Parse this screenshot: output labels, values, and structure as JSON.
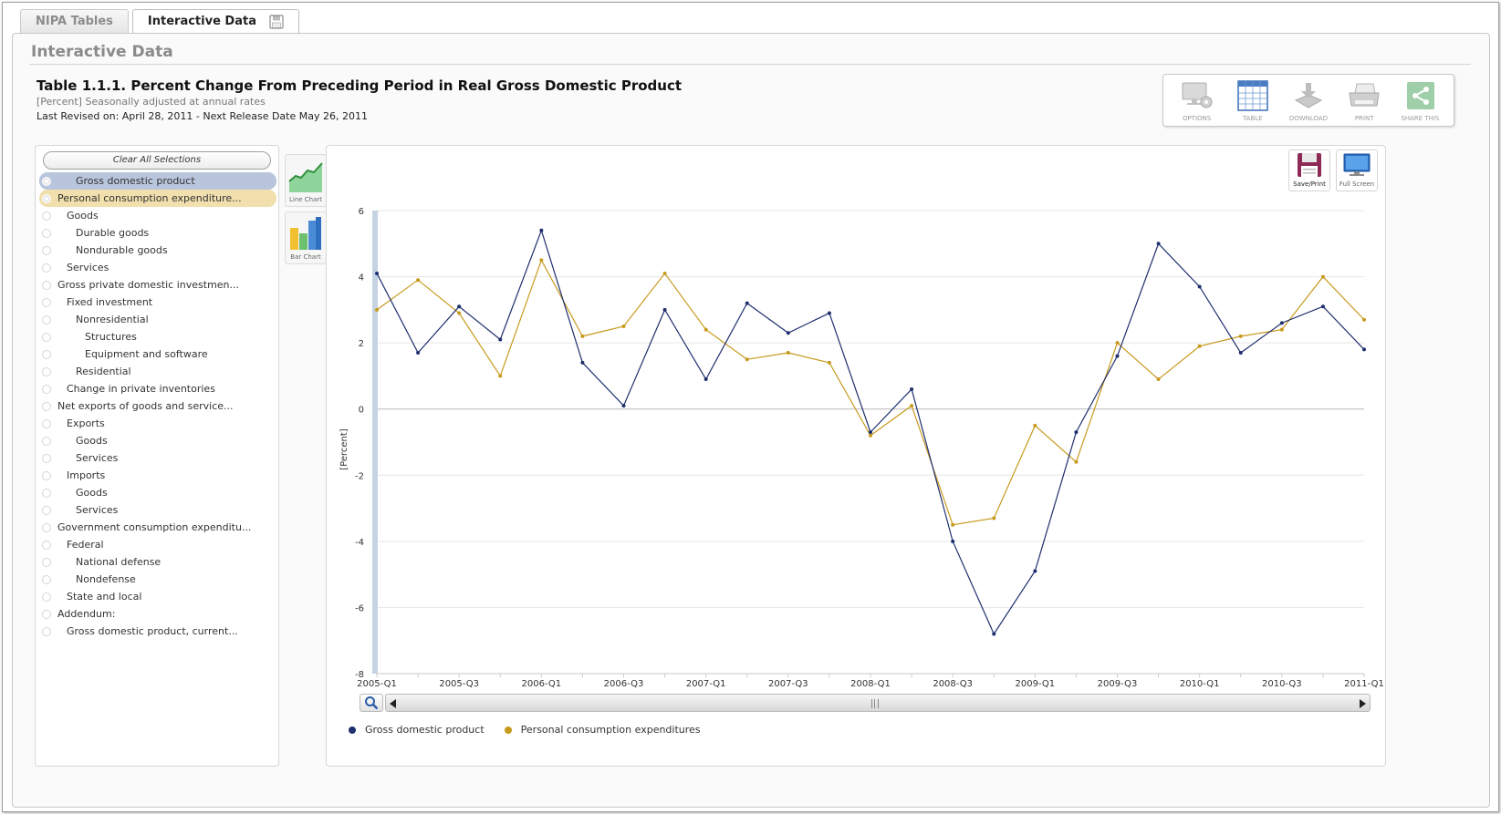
{
  "tabs": [
    {
      "label": "NIPA Tables",
      "active": false
    },
    {
      "label": "Interactive Data",
      "active": true
    }
  ],
  "panel": {
    "heading": "Interactive Data",
    "table_title": "Table 1.1.1. Percent Change From Preceding Period in Real Gross Domestic Product",
    "subtitle": "[Percent] Seasonally adjusted at annual rates",
    "revised": "Last Revised on: April 28, 2011 - Next Release Date May 26, 2011"
  },
  "toolbar": {
    "options": "OPTIONS",
    "table": "TABLE",
    "download": "DOWNLOAD",
    "print": "PRINT",
    "share": "SHARE THIS"
  },
  "series_panel": {
    "clear_label": "Clear All Selections",
    "items": [
      {
        "label": "Gross domestic product",
        "level": 2,
        "selected": "gdp"
      },
      {
        "label": "Personal consumption expenditure...",
        "level": 0,
        "selected": "pce"
      },
      {
        "label": "Goods",
        "level": 1
      },
      {
        "label": "Durable goods",
        "level": 2
      },
      {
        "label": "Nondurable goods",
        "level": 2
      },
      {
        "label": "Services",
        "level": 1
      },
      {
        "label": "Gross private domestic investmen...",
        "level": 0
      },
      {
        "label": "Fixed investment",
        "level": 1
      },
      {
        "label": "Nonresidential",
        "level": 2
      },
      {
        "label": "Structures",
        "level": 3
      },
      {
        "label": "Equipment and software",
        "level": 3
      },
      {
        "label": "Residential",
        "level": 2
      },
      {
        "label": "Change in private inventories",
        "level": 1
      },
      {
        "label": "Net exports of goods and service...",
        "level": 0
      },
      {
        "label": "Exports",
        "level": 1
      },
      {
        "label": "Goods",
        "level": 2
      },
      {
        "label": "Services",
        "level": 2
      },
      {
        "label": "Imports",
        "level": 1
      },
      {
        "label": "Goods",
        "level": 2
      },
      {
        "label": "Services",
        "level": 2
      },
      {
        "label": "Government consumption expenditu...",
        "level": 0
      },
      {
        "label": "Federal",
        "level": 1
      },
      {
        "label": "National defense",
        "level": 2
      },
      {
        "label": "Nondefense",
        "level": 2
      },
      {
        "label": "State and local",
        "level": 1
      },
      {
        "label": "Addendum:",
        "level": 0
      },
      {
        "label": "Gross domestic product, current...",
        "level": 1
      }
    ]
  },
  "chart_types": {
    "line": "Line Chart",
    "bar": "Bar Chart"
  },
  "chart_buttons": {
    "save_print": "Save/Print",
    "full_screen": "Full Screen"
  },
  "colors": {
    "gdp": "#1f2f6e",
    "pce": "#c79a1e",
    "gdp_highlight": "#b8c5dd",
    "pce_highlight": "#f1dfae"
  },
  "chart_data": {
    "type": "line",
    "title": "",
    "xlabel": "",
    "ylabel": "[Percent]",
    "ylim": [
      -8,
      6
    ],
    "yticks": [
      -8,
      -6,
      -4,
      -2,
      0,
      2,
      4,
      6
    ],
    "x": [
      "2005-Q1",
      "2005-Q2",
      "2005-Q3",
      "2005-Q4",
      "2006-Q1",
      "2006-Q2",
      "2006-Q3",
      "2006-Q4",
      "2007-Q1",
      "2007-Q2",
      "2007-Q3",
      "2007-Q4",
      "2008-Q1",
      "2008-Q2",
      "2008-Q3",
      "2008-Q4",
      "2009-Q1",
      "2009-Q2",
      "2009-Q3",
      "2009-Q4",
      "2010-Q1",
      "2010-Q2",
      "2010-Q3",
      "2010-Q4",
      "2011-Q1"
    ],
    "xtick_labels": [
      "2005-Q1",
      "2005-Q3",
      "2006-Q1",
      "2006-Q3",
      "2007-Q1",
      "2007-Q3",
      "2008-Q1",
      "2008-Q3",
      "2009-Q1",
      "2009-Q3",
      "2010-Q1",
      "2010-Q3",
      "2011-Q1"
    ],
    "series": [
      {
        "name": "Gross domestic product",
        "color": "#1f2f6e",
        "values": [
          4.1,
          1.7,
          3.1,
          2.1,
          5.4,
          1.4,
          0.1,
          3.0,
          0.9,
          3.2,
          2.3,
          2.9,
          -0.7,
          0.6,
          -4.0,
          -6.8,
          -4.9,
          -0.7,
          1.6,
          5.0,
          3.7,
          1.7,
          2.6,
          3.1,
          1.8
        ]
      },
      {
        "name": "Personal consumption expenditures",
        "color": "#c79a1e",
        "values": [
          3.0,
          3.9,
          2.9,
          1.0,
          4.5,
          2.2,
          2.5,
          4.1,
          2.4,
          1.5,
          1.7,
          1.4,
          -0.8,
          0.1,
          -3.5,
          -3.3,
          -0.5,
          -1.6,
          2.0,
          0.9,
          1.9,
          2.2,
          2.4,
          4.0,
          2.7
        ]
      }
    ],
    "grid": true,
    "legend": "bottom-left"
  }
}
